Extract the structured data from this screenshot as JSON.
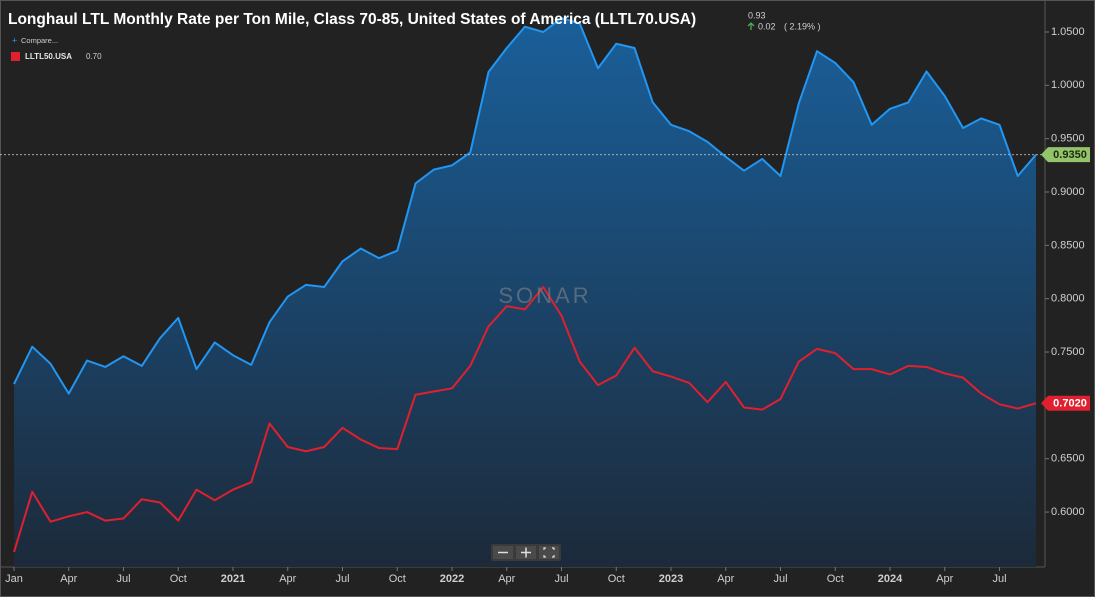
{
  "chart_data": {
    "type": "line",
    "title": "Longhaul LTL Monthly Rate per Ton Mile, Class 70-85, United States of America (LLTL70.USA)",
    "last_value_label": "0.93",
    "change_label": "0.02",
    "change_pct_label": "( 2.19% )",
    "compare_label": "Compare...",
    "watermark": "SONAR",
    "x": [
      "2020-01",
      "2020-02",
      "2020-03",
      "2020-04",
      "2020-05",
      "2020-06",
      "2020-07",
      "2020-08",
      "2020-09",
      "2020-10",
      "2020-11",
      "2020-12",
      "2021-01",
      "2021-02",
      "2021-03",
      "2021-04",
      "2021-05",
      "2021-06",
      "2021-07",
      "2021-08",
      "2021-09",
      "2021-10",
      "2021-11",
      "2021-12",
      "2022-01",
      "2022-02",
      "2022-03",
      "2022-04",
      "2022-05",
      "2022-06",
      "2022-07",
      "2022-08",
      "2022-09",
      "2022-10",
      "2022-11",
      "2022-12",
      "2023-01",
      "2023-02",
      "2023-03",
      "2023-04",
      "2023-05",
      "2023-06",
      "2023-07",
      "2023-08",
      "2023-09",
      "2023-10",
      "2023-11",
      "2023-12",
      "2024-01",
      "2024-02",
      "2024-03",
      "2024-04",
      "2024-05",
      "2024-06",
      "2024-07",
      "2024-08",
      "2024-09"
    ],
    "series": [
      {
        "color": "#2196f3",
        "area": true,
        "end_label": "0.9350",
        "end_label_color": "#93c36a",
        "values": [
          0.72,
          0.755,
          0.739,
          0.711,
          0.742,
          0.736,
          0.746,
          0.737,
          0.763,
          0.782,
          0.734,
          0.759,
          0.747,
          0.738,
          0.778,
          0.802,
          0.813,
          0.811,
          0.835,
          0.847,
          0.838,
          0.845,
          0.908,
          0.921,
          0.925,
          0.937,
          1.0125,
          1.035,
          1.055,
          1.05,
          1.063,
          1.058,
          1.016,
          1.039,
          1.035,
          0.984,
          0.963,
          0.957,
          0.947,
          0.933,
          0.92,
          0.931,
          0.915,
          0.983,
          1.032,
          1.021,
          1.003,
          0.963,
          0.978,
          0.984,
          1.013,
          0.99,
          0.96,
          0.969,
          0.963,
          0.915,
          0.935
        ]
      },
      {
        "name": "LLTL50.USA",
        "legend_value": "0.70",
        "color": "#e0202e",
        "area": false,
        "end_label": "0.7020",
        "end_label_color": "#e0202e",
        "values": [
          0.5625,
          0.619,
          0.591,
          0.596,
          0.6,
          0.592,
          0.594,
          0.612,
          0.609,
          0.592,
          0.621,
          0.611,
          0.621,
          0.628,
          0.683,
          0.661,
          0.657,
          0.661,
          0.679,
          0.668,
          0.66,
          0.659,
          0.71,
          0.713,
          0.716,
          0.737,
          0.774,
          0.793,
          0.79,
          0.811,
          0.784,
          0.741,
          0.719,
          0.728,
          0.754,
          0.732,
          0.727,
          0.721,
          0.703,
          0.722,
          0.698,
          0.696,
          0.706,
          0.741,
          0.753,
          0.749,
          0.734,
          0.734,
          0.729,
          0.737,
          0.736,
          0.73,
          0.726,
          0.711,
          0.701,
          0.697,
          0.702
        ]
      }
    ],
    "ylim": [
      0.5485,
      1.0753
    ],
    "yticks": [
      {
        "value": 0.6,
        "label": "0.6000"
      },
      {
        "value": 0.65,
        "label": "0.6500"
      },
      {
        "value": 0.7,
        "label": "0.7000"
      },
      {
        "value": 0.75,
        "label": "0.7500"
      },
      {
        "value": 0.8,
        "label": "0.8000"
      },
      {
        "value": 0.85,
        "label": "0.8500"
      },
      {
        "value": 0.9,
        "label": "0.9000"
      },
      {
        "value": 0.95,
        "label": "0.9500"
      },
      {
        "value": 1.0,
        "label": "1.0000"
      },
      {
        "value": 1.05,
        "label": "1.0500"
      }
    ],
    "xticks": [
      {
        "value": "2020-01",
        "label": "Jan"
      },
      {
        "value": "2020-04",
        "label": "Apr"
      },
      {
        "value": "2020-07",
        "label": "Jul"
      },
      {
        "value": "2020-10",
        "label": "Oct"
      },
      {
        "value": "2021-01",
        "label": "2021"
      },
      {
        "value": "2021-04",
        "label": "Apr"
      },
      {
        "value": "2021-07",
        "label": "Jul"
      },
      {
        "value": "2021-10",
        "label": "Oct"
      },
      {
        "value": "2022-01",
        "label": "2022"
      },
      {
        "value": "2022-04",
        "label": "Apr"
      },
      {
        "value": "2022-07",
        "label": "Jul"
      },
      {
        "value": "2022-10",
        "label": "Oct"
      },
      {
        "value": "2023-01",
        "label": "2023"
      },
      {
        "value": "2023-04",
        "label": "Apr"
      },
      {
        "value": "2023-07",
        "label": "Jul"
      },
      {
        "value": "2023-10",
        "label": "Oct"
      },
      {
        "value": "2024-01",
        "label": "2024"
      },
      {
        "value": "2024-04",
        "label": "Apr"
      },
      {
        "value": "2024-07",
        "label": "Jul"
      }
    ],
    "grid": false,
    "reference_line": true
  }
}
